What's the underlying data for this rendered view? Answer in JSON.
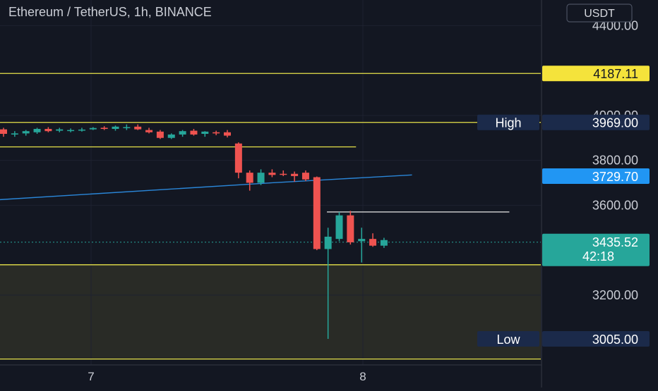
{
  "header": {
    "title": "Ethereum / TetherUS, 1h, BINANCE",
    "currency_button": "USDT"
  },
  "colors": {
    "background": "#131722",
    "grid": "#1e2230",
    "up": "#26a69a",
    "down": "#ef5350",
    "level": "#e8e34a",
    "ma": "#2a86d8",
    "white_line": "#e8e8e8",
    "axis_text": "#c9ccd4",
    "label_navy": "#1b2a4a",
    "label_blue": "#2196f3",
    "label_yellow": "#f5e33b",
    "label_teal": "#26a69a"
  },
  "chart_data": {
    "type": "candlestick",
    "title": "Ethereum / TetherUS, 1h, BINANCE",
    "ylim": [
      2900,
      4450
    ],
    "y_ticks": [
      "3200.00",
      "3600.00",
      "3800.00",
      "4000.00",
      "4400.00"
    ],
    "x_ticks": [
      "7",
      "8"
    ],
    "candles": [
      {
        "o": 3938,
        "h": 3945,
        "l": 3905,
        "c": 3918
      },
      {
        "o": 3915,
        "h": 3930,
        "l": 3905,
        "c": 3920
      },
      {
        "o": 3920,
        "h": 3935,
        "l": 3910,
        "c": 3930
      },
      {
        "o": 3925,
        "h": 3945,
        "l": 3918,
        "c": 3940
      },
      {
        "o": 3940,
        "h": 3948,
        "l": 3925,
        "c": 3930
      },
      {
        "o": 3932,
        "h": 3945,
        "l": 3925,
        "c": 3938
      },
      {
        "o": 3935,
        "h": 3942,
        "l": 3925,
        "c": 3935
      },
      {
        "o": 3935,
        "h": 3945,
        "l": 3928,
        "c": 3937
      },
      {
        "o": 3938,
        "h": 3948,
        "l": 3935,
        "c": 3944
      },
      {
        "o": 3945,
        "h": 3952,
        "l": 3935,
        "c": 3940
      },
      {
        "o": 3940,
        "h": 3955,
        "l": 3932,
        "c": 3950
      },
      {
        "o": 3945,
        "h": 3960,
        "l": 3935,
        "c": 3948
      },
      {
        "o": 3950,
        "h": 3960,
        "l": 3935,
        "c": 3938
      },
      {
        "o": 3935,
        "h": 3945,
        "l": 3920,
        "c": 3925
      },
      {
        "o": 3928,
        "h": 3935,
        "l": 3895,
        "c": 3900
      },
      {
        "o": 3900,
        "h": 3920,
        "l": 3895,
        "c": 3915
      },
      {
        "o": 3915,
        "h": 3935,
        "l": 3905,
        "c": 3930
      },
      {
        "o": 3932,
        "h": 3940,
        "l": 3910,
        "c": 3915
      },
      {
        "o": 3918,
        "h": 3930,
        "l": 3905,
        "c": 3928
      },
      {
        "o": 3925,
        "h": 3932,
        "l": 3912,
        "c": 3920
      },
      {
        "o": 3925,
        "h": 3935,
        "l": 3902,
        "c": 3910
      },
      {
        "o": 3875,
        "h": 3880,
        "l": 3720,
        "c": 3745
      },
      {
        "o": 3745,
        "h": 3755,
        "l": 3665,
        "c": 3700
      },
      {
        "o": 3700,
        "h": 3760,
        "l": 3690,
        "c": 3745
      },
      {
        "o": 3745,
        "h": 3760,
        "l": 3725,
        "c": 3735
      },
      {
        "o": 3740,
        "h": 3755,
        "l": 3730,
        "c": 3738
      },
      {
        "o": 3740,
        "h": 3750,
        "l": 3705,
        "c": 3730
      },
      {
        "o": 3745,
        "h": 3755,
        "l": 3708,
        "c": 3715
      },
      {
        "o": 3725,
        "h": 3728,
        "l": 3400,
        "c": 3405
      },
      {
        "o": 3405,
        "h": 3500,
        "l": 3005,
        "c": 3460
      },
      {
        "o": 3450,
        "h": 3570,
        "l": 3440,
        "c": 3555
      },
      {
        "o": 3555,
        "h": 3575,
        "l": 3425,
        "c": 3435
      },
      {
        "o": 3440,
        "h": 3500,
        "l": 3345,
        "c": 3450
      },
      {
        "o": 3450,
        "h": 3475,
        "l": 3415,
        "c": 3420
      },
      {
        "o": 3420,
        "h": 3455,
        "l": 3410,
        "c": 3445
      }
    ],
    "moving_average": [
      {
        "x": 0,
        "y": 3625
      },
      {
        "x": 24,
        "y": 3700
      },
      {
        "x": 36.5,
        "y": 3735
      }
    ],
    "horizontal_levels": [
      {
        "y": 4187.11,
        "x_start": 0,
        "x_end": "axis"
      },
      {
        "y": 3969.0,
        "x_start": 0,
        "x_end": "axis"
      },
      {
        "y": 3860,
        "x_start": 0,
        "x_end": 31.5
      },
      {
        "y": 3335,
        "x_start": 0,
        "x_end": "axis"
      },
      {
        "y": 2915,
        "x_start": 0,
        "x_end": "axis"
      }
    ],
    "white_level": {
      "y": 3570,
      "x_start": 28.9,
      "x_end": 45.2
    },
    "current_price": 3435.52,
    "countdown": "42:18",
    "price_labels": [
      {
        "kind": "yellow",
        "value": "4187.11"
      },
      {
        "kind": "navy",
        "value": "3969.00",
        "tag": "High"
      },
      {
        "kind": "blue",
        "value": "3729.70"
      },
      {
        "kind": "navy",
        "value": "3005.00",
        "tag": "Low"
      }
    ]
  }
}
